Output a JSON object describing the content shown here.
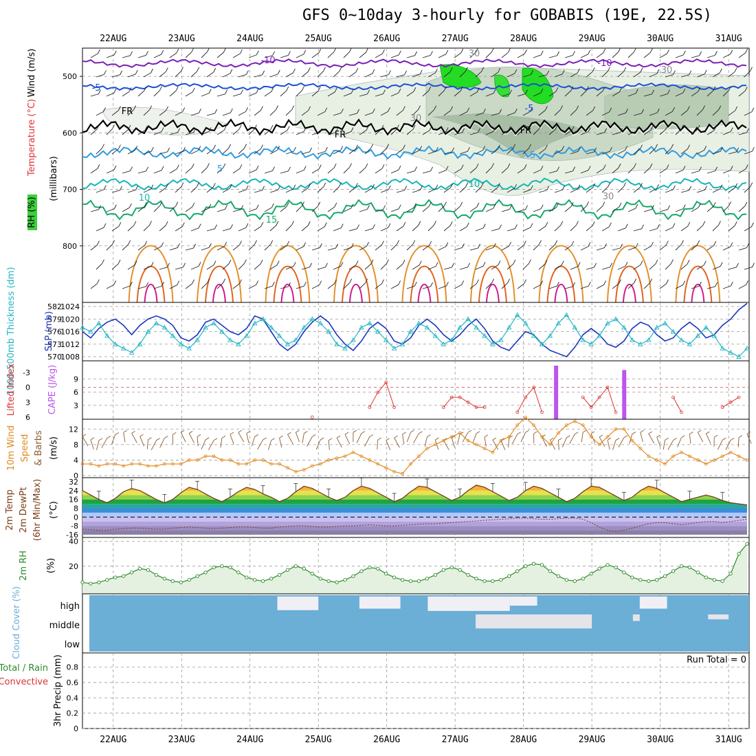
{
  "title": "GFS 0~10day 3-hourly for GOBABIS (19E, 22.5S)",
  "colors": {
    "purple": "#7a1fb5",
    "blue": "#1a4fd6",
    "lightblue": "#2f9be0",
    "teal": "#17b6b3",
    "green": "#17a86b",
    "orange": "#e3902a",
    "darkorange": "#e0641e",
    "magenta": "#d21a8a",
    "cloud": "#6baed6",
    "rhgreen": "#2c8a2c",
    "slp": "#1a35c0",
    "thick": "#24b5c4",
    "cape": "#bb55ee",
    "li": "#dd3333",
    "wind": "#e08a20"
  },
  "chart_data": [
    {
      "id": "upper",
      "type": "contour",
      "ylabel_rh": "RH (%)",
      "ylabel_temp": "Temperature (°C)",
      "ylabel_wind": "Wind (m/s)",
      "ylabel_units": "(millibars)",
      "y_ticks": [
        500,
        600,
        700,
        800
      ],
      "ylim": [
        450,
        900
      ],
      "contour_labels": [
        "-10",
        "-10",
        "-5",
        "-5",
        "FR",
        "FR",
        "FR",
        "5",
        "5",
        "10",
        "10",
        "15",
        "30",
        "30",
        "30",
        "30"
      ]
    },
    {
      "id": "slp",
      "type": "line",
      "ylabel_left": "1000-500mb Thickness (dm)",
      "ylabel_right": "SLP (mb)",
      "left_ticks": [
        "570",
        "573",
        "576",
        "579",
        "582"
      ],
      "right_ticks": [
        "1008",
        "1012",
        "1016",
        "1020",
        "1024"
      ],
      "series": [
        {
          "name": "SLP (mb)",
          "values": [
            1016,
            1014,
            1017,
            1019,
            1020,
            1018,
            1015,
            1018,
            1020,
            1021,
            1020,
            1018,
            1014,
            1013,
            1015,
            1019,
            1020,
            1018,
            1016,
            1015,
            1017,
            1021,
            1020,
            1016,
            1012,
            1010,
            1012,
            1016,
            1019,
            1021,
            1019,
            1015,
            1012,
            1010,
            1013,
            1017,
            1019,
            1017,
            1013,
            1012,
            1014,
            1018,
            1020,
            1018,
            1015,
            1013,
            1015,
            1018,
            1020,
            1017,
            1013,
            1011,
            1010,
            1013,
            1016,
            1015,
            1012,
            1010,
            1009,
            1008,
            1011,
            1015,
            1017,
            1015,
            1012,
            1011,
            1013,
            1017,
            1019,
            1018,
            1015,
            1013,
            1014,
            1017,
            1019,
            1017,
            1014,
            1015,
            1018,
            1020,
            1023,
            1025
          ]
        },
        {
          "name": "Thickness (dm)",
          "values": [
            577,
            576,
            578,
            575,
            573,
            572,
            571,
            573,
            576,
            578,
            577,
            575,
            573,
            572,
            574,
            577,
            578,
            576,
            574,
            573,
            575,
            578,
            579,
            577,
            575,
            573,
            574,
            577,
            579,
            578,
            576,
            573,
            572,
            574,
            577,
            578,
            576,
            574,
            572,
            573,
            576,
            578,
            577,
            575,
            573,
            574,
            577,
            579,
            577,
            575,
            573,
            574,
            577,
            580,
            578,
            575,
            573,
            575,
            578,
            580,
            577,
            574,
            573,
            575,
            578,
            579,
            577,
            574,
            573,
            574,
            577,
            578,
            576,
            574,
            573,
            575,
            577,
            575,
            572,
            571,
            570,
            572
          ]
        }
      ]
    },
    {
      "id": "cape",
      "type": "bar",
      "ylabel_left": "Lifted Index",
      "ylabel_right": "CAPE (J/kg)",
      "left_ticks": [
        "-3",
        "0",
        "3",
        "6"
      ],
      "right_ticks": [
        "3",
        "6",
        "9"
      ],
      "li_series": [
        null,
        null,
        null,
        null,
        null,
        null,
        null,
        null,
        null,
        null,
        null,
        null,
        null,
        null,
        null,
        null,
        null,
        null,
        null,
        null,
        null,
        null,
        null,
        null,
        null,
        null,
        null,
        null,
        6,
        null,
        null,
        null,
        null,
        null,
        null,
        4,
        1,
        -1,
        4,
        null,
        null,
        null,
        null,
        null,
        4,
        2,
        2,
        3,
        4,
        4,
        null,
        null,
        null,
        5,
        2,
        0,
        5,
        null,
        null,
        null,
        null,
        2,
        4,
        2,
        0,
        5,
        null,
        null,
        null,
        null,
        null,
        null,
        2,
        5,
        null,
        null,
        null,
        null,
        4,
        3,
        2,
        null
      ],
      "cape_bars": [
        {
          "x": 57.7,
          "value": 12
        },
        {
          "x": 66.0,
          "value": 11
        }
      ]
    },
    {
      "id": "wind",
      "type": "line",
      "ylabel": "10m Wind Speed & Barbs (m/s)",
      "y_ticks": [
        "0",
        "4",
        "8",
        "12"
      ],
      "series": [
        {
          "name": "10m Wind Speed",
          "values": [
            3,
            3,
            2.5,
            3,
            3,
            2.5,
            3,
            3,
            2.5,
            2.5,
            3,
            3,
            3,
            4,
            4,
            5,
            5,
            4,
            4,
            3,
            3,
            4,
            4,
            3,
            3,
            2,
            1,
            1.5,
            2.5,
            3,
            4,
            4.5,
            5,
            6,
            5,
            4,
            3,
            2,
            1,
            0.5,
            3,
            5,
            7,
            8,
            9,
            10,
            11,
            9,
            8,
            7,
            6,
            9,
            10,
            13,
            15,
            13,
            10,
            8,
            11,
            13,
            14,
            13,
            10,
            8,
            10,
            12,
            12,
            9,
            7,
            5,
            4,
            3,
            5,
            6,
            5,
            4,
            3,
            4,
            5,
            6,
            5,
            4
          ]
        }
      ]
    },
    {
      "id": "temp",
      "type": "area",
      "ylabel": "2m Temp 2m DewPt (6hr Min/Max) (°C)",
      "y_ticks": [
        "-16",
        "-8",
        "0",
        "8",
        "16",
        "24",
        "32"
      ],
      "series": [
        {
          "name": "2m Temp",
          "values": [
            24,
            20,
            16,
            13,
            17,
            23,
            26,
            24,
            20,
            16,
            13,
            16,
            22,
            27,
            25,
            21,
            17,
            14,
            18,
            23,
            27,
            25,
            21,
            18,
            14,
            17,
            23,
            28,
            26,
            22,
            18,
            15,
            18,
            24,
            28,
            26,
            22,
            18,
            14,
            17,
            23,
            28,
            27,
            23,
            19,
            15,
            18,
            24,
            29,
            27,
            23,
            19,
            15,
            18,
            24,
            28,
            26,
            22,
            18,
            14,
            17,
            23,
            28,
            27,
            23,
            19,
            15,
            18,
            24,
            28,
            26,
            22,
            18,
            14,
            16,
            18,
            20,
            18,
            15,
            13,
            12,
            11
          ]
        },
        {
          "name": "2m DewPt",
          "values": [
            -11,
            -11.5,
            -12,
            -12,
            -11,
            -10.5,
            -10,
            -10,
            -10.5,
            -11,
            -11,
            -10,
            -9.5,
            -9,
            -9.5,
            -10,
            -10.5,
            -10,
            -9.5,
            -9,
            -9,
            -9.5,
            -10,
            -10,
            -9,
            -8.5,
            -8,
            -8,
            -8.5,
            -9,
            -9,
            -8.5,
            -8,
            -8,
            -7.5,
            -7,
            -7.5,
            -8,
            -8,
            -7.5,
            -7,
            -6.5,
            -6,
            -6,
            -5.5,
            -5,
            -4.5,
            -4,
            -3.5,
            -3,
            -2.5,
            -2,
            -1.5,
            -1,
            -1,
            -1.5,
            -2,
            -2,
            -1.5,
            -1,
            -1,
            -2,
            -5,
            -9,
            -12,
            -13,
            -12,
            -10,
            -8,
            -6,
            -5,
            -5,
            -6,
            -7,
            -6,
            -5,
            -4,
            -4,
            -5,
            -4,
            -3,
            -2
          ]
        }
      ]
    },
    {
      "id": "rh",
      "type": "area",
      "ylabel": "2m RH (%)",
      "y_ticks": [
        "20",
        "40"
      ],
      "series": [
        {
          "name": "2m RH",
          "values": [
            7,
            6,
            7,
            9,
            11,
            12,
            15,
            18,
            17,
            13,
            10,
            8,
            7,
            9,
            12,
            15,
            19,
            20,
            19,
            15,
            11,
            9,
            8,
            10,
            13,
            17,
            20,
            18,
            14,
            10,
            8,
            7,
            9,
            12,
            16,
            19,
            18,
            14,
            11,
            9,
            8,
            8,
            10,
            13,
            17,
            19,
            17,
            13,
            10,
            8,
            8,
            9,
            12,
            16,
            20,
            22,
            21,
            16,
            12,
            9,
            8,
            10,
            14,
            18,
            21,
            19,
            15,
            11,
            9,
            8,
            9,
            12,
            16,
            20,
            19,
            15,
            11,
            9,
            8,
            14,
            30,
            38
          ]
        }
      ]
    },
    {
      "id": "cloud",
      "type": "heatmap",
      "ylabel": "Cloud Cover (%)",
      "levels": [
        "high",
        "middle",
        "low"
      ],
      "high_blocks": [
        {
          "x0": 24.4,
          "x1": 25.0,
          "v": 0.9
        },
        {
          "x0": 25.6,
          "x1": 26.2,
          "v": 0.8
        },
        {
          "x0": 26.6,
          "x1": 27.8,
          "v": 0.95
        },
        {
          "x0": 27.8,
          "x1": 28.2,
          "v": 0.6
        },
        {
          "x0": 29.7,
          "x1": 30.1,
          "v": 0.8
        }
      ],
      "middle_blocks": [
        {
          "x0": 27.3,
          "x1": 29.0,
          "v": 0.85
        },
        {
          "x0": 29.6,
          "x1": 29.7,
          "v": 0.4
        },
        {
          "x0": 30.7,
          "x1": 31.0,
          "v": 0.3
        }
      ]
    },
    {
      "id": "precip",
      "type": "bar",
      "ylabel_total": "Total / Rain",
      "ylabel_conv": "Convective",
      "ylabel": "3hr Precip (mm)",
      "y_ticks": [
        "0",
        "0.2",
        "0.4",
        "0.6",
        "0.8"
      ],
      "run_total_label": "Run Total = 0",
      "values": []
    }
  ],
  "x_axis": {
    "dates_top": [
      "22AUG",
      "23AUG",
      "24AUG",
      "25AUG",
      "26AUG",
      "27AUG",
      "28AUG",
      "29AUG",
      "30AUG",
      "31AUG"
    ],
    "dates_bottom": [
      "22AUG",
      "23AUG",
      "24AUG",
      "25AUG",
      "26AUG",
      "27AUG",
      "28AUG",
      "29AUG",
      "30AUG",
      "31AUG"
    ]
  }
}
